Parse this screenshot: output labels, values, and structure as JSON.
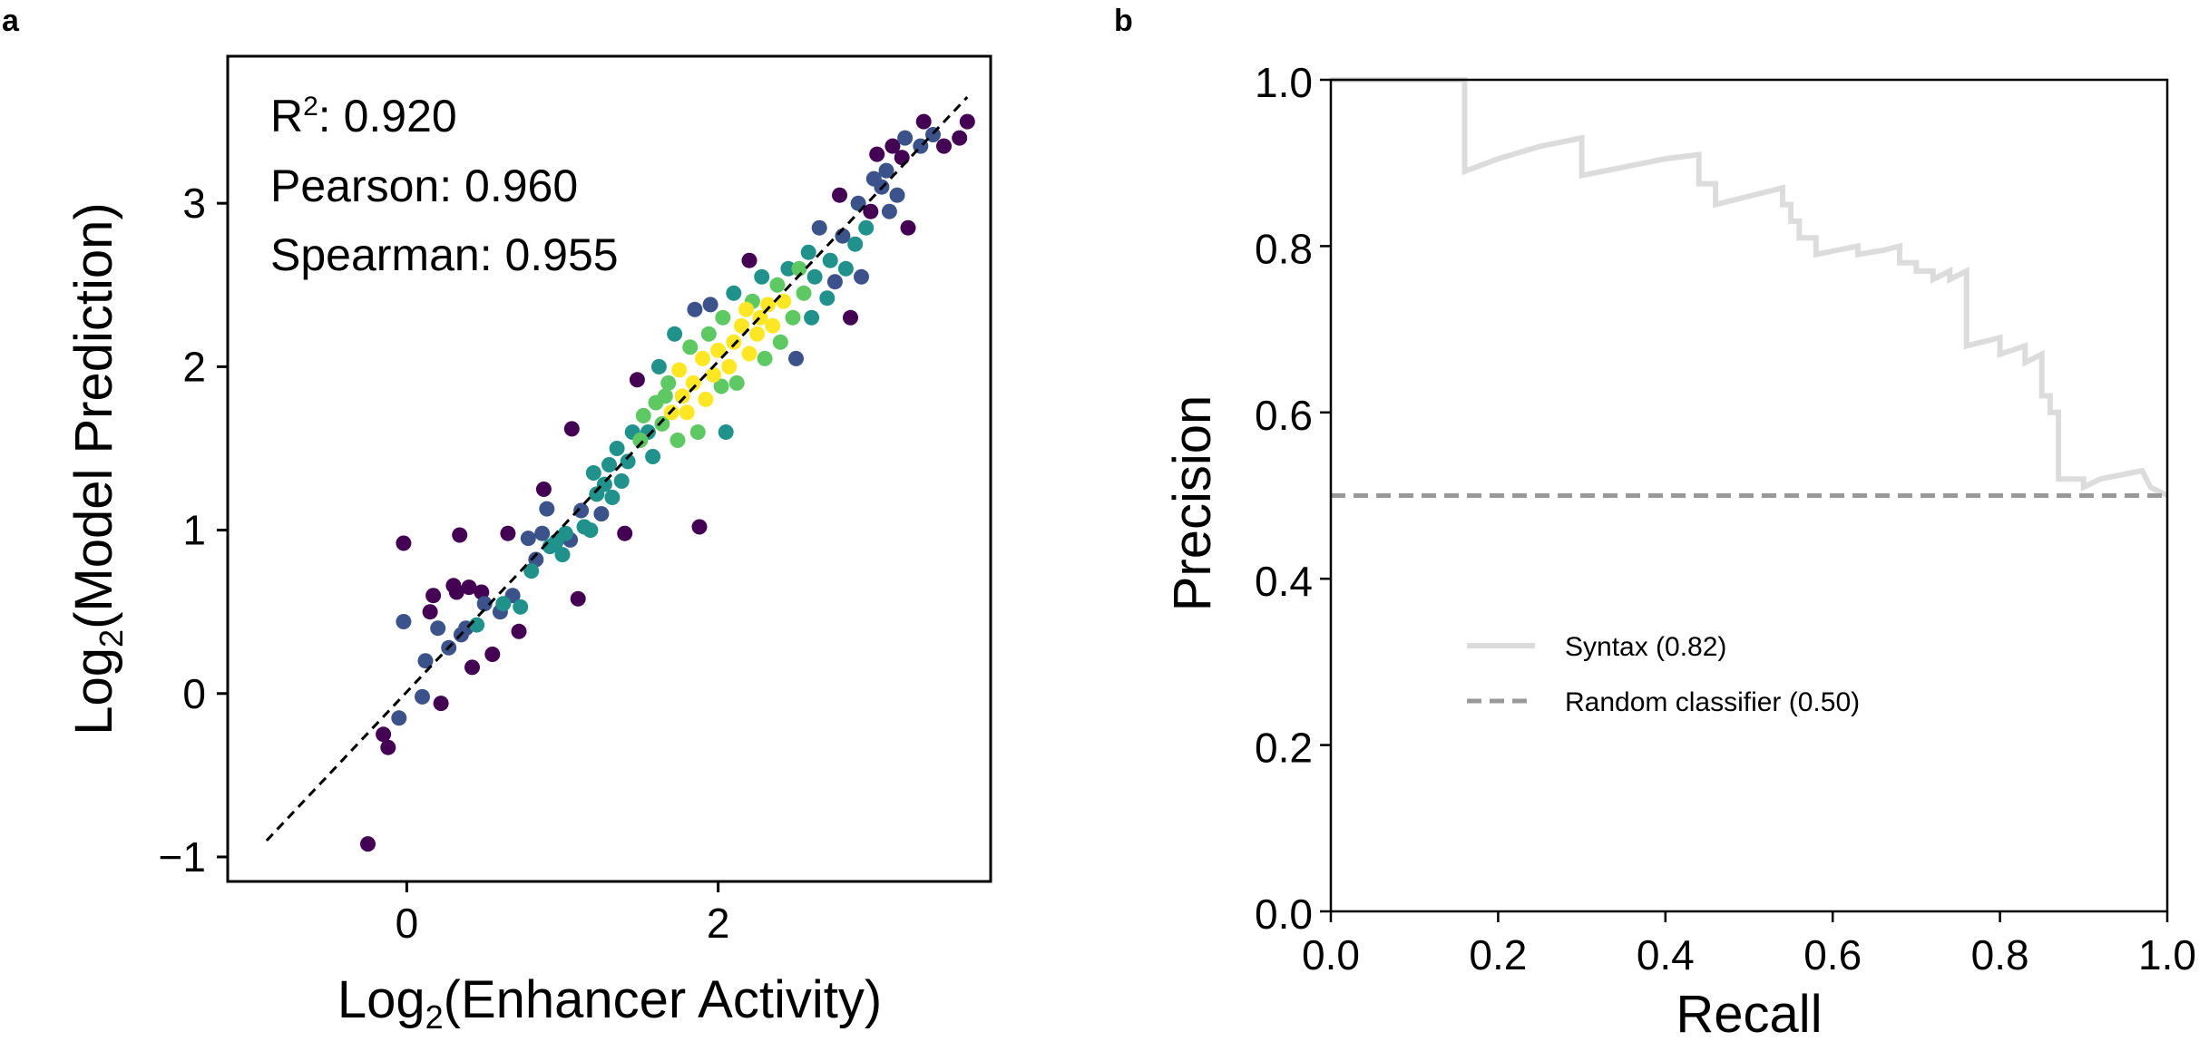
{
  "panels": {
    "a": {
      "letter": "a",
      "stats": {
        "r2_prefix": "R",
        "r2_sup": "2",
        "r2_rest": ": 0.920",
        "pearson": "Pearson: 0.960",
        "spearman": "Spearman: 0.955"
      },
      "xlabel": {
        "prefix": "Log",
        "sub": "2",
        "rest": "(Enhancer Activity)"
      },
      "ylabel": {
        "prefix": "Log",
        "sub": "2",
        "rest": "(Model Prediction)"
      }
    },
    "b": {
      "letter": "b",
      "xlabel": "Recall",
      "ylabel": "Precision",
      "legend": [
        "Syntax (0.82)",
        "Random classifier (0.50)"
      ]
    }
  },
  "chart_data": [
    {
      "type": "scatter",
      "xlim": [
        -1.15,
        3.75
      ],
      "ylim": [
        -1.15,
        3.9
      ],
      "xticks": [
        {
          "v": 0,
          "label": "0"
        },
        {
          "v": 2,
          "label": "2"
        }
      ],
      "yticks": [
        {
          "v": -1,
          "label": "−1"
        },
        {
          "v": 0,
          "label": "0"
        },
        {
          "v": 1,
          "label": "1"
        },
        {
          "v": 2,
          "label": "2"
        },
        {
          "v": 3,
          "label": "3"
        }
      ],
      "colormap": "viridis (point density)",
      "density_colors": [
        "#440154",
        "#3b528b",
        "#21918c",
        "#5ec962",
        "#fde725"
      ],
      "identity_line": {
        "x": [
          -0.9,
          3.6
        ],
        "y": [
          -0.9,
          3.65
        ],
        "color": "#000000",
        "style": "dashed"
      },
      "points": [
        [
          -0.25,
          -0.92,
          0
        ],
        [
          -0.15,
          -0.25,
          0
        ],
        [
          -0.12,
          -0.33,
          0
        ],
        [
          -0.05,
          -0.15,
          1
        ],
        [
          -0.02,
          0.92,
          0
        ],
        [
          -0.02,
          0.44,
          1
        ],
        [
          0.1,
          -0.02,
          1
        ],
        [
          0.12,
          0.2,
          1
        ],
        [
          0.15,
          0.5,
          0
        ],
        [
          0.17,
          0.6,
          0
        ],
        [
          0.2,
          0.4,
          1
        ],
        [
          0.22,
          -0.06,
          0
        ],
        [
          0.27,
          0.28,
          1
        ],
        [
          0.3,
          0.66,
          0
        ],
        [
          0.32,
          0.62,
          0
        ],
        [
          0.34,
          0.97,
          0
        ],
        [
          0.35,
          0.36,
          1
        ],
        [
          0.38,
          0.4,
          1
        ],
        [
          0.4,
          0.65,
          0
        ],
        [
          0.42,
          0.16,
          0
        ],
        [
          0.45,
          0.42,
          2
        ],
        [
          0.48,
          0.62,
          0
        ],
        [
          0.5,
          0.55,
          1
        ],
        [
          0.55,
          0.24,
          0
        ],
        [
          0.6,
          0.5,
          1
        ],
        [
          0.62,
          0.55,
          2
        ],
        [
          0.65,
          0.98,
          0
        ],
        [
          0.68,
          0.6,
          1
        ],
        [
          0.72,
          0.38,
          0
        ],
        [
          0.73,
          0.53,
          2
        ],
        [
          0.78,
          0.95,
          1
        ],
        [
          0.8,
          0.75,
          2
        ],
        [
          0.83,
          0.82,
          1
        ],
        [
          0.87,
          0.98,
          1
        ],
        [
          0.88,
          1.25,
          0
        ],
        [
          0.9,
          1.13,
          1
        ],
        [
          0.92,
          0.9,
          2
        ],
        [
          0.96,
          0.93,
          2
        ],
        [
          1.0,
          0.85,
          2
        ],
        [
          1.02,
          0.98,
          2
        ],
        [
          1.05,
          0.94,
          1
        ],
        [
          1.06,
          1.62,
          0
        ],
        [
          1.1,
          0.58,
          0
        ],
        [
          1.12,
          1.12,
          1
        ],
        [
          1.14,
          1.02,
          2
        ],
        [
          1.18,
          1.0,
          2
        ],
        [
          1.2,
          1.35,
          2
        ],
        [
          1.22,
          1.22,
          2
        ],
        [
          1.25,
          1.1,
          1
        ],
        [
          1.27,
          1.28,
          2
        ],
        [
          1.3,
          1.4,
          2
        ],
        [
          1.32,
          1.2,
          2
        ],
        [
          1.35,
          1.5,
          2
        ],
        [
          1.38,
          1.3,
          2
        ],
        [
          1.4,
          0.98,
          0
        ],
        [
          1.42,
          1.42,
          2
        ],
        [
          1.45,
          1.6,
          2
        ],
        [
          1.48,
          1.92,
          0
        ],
        [
          1.5,
          1.55,
          3
        ],
        [
          1.52,
          1.7,
          3
        ],
        [
          1.55,
          1.6,
          2
        ],
        [
          1.58,
          1.45,
          2
        ],
        [
          1.6,
          1.78,
          3
        ],
        [
          1.62,
          2.0,
          2
        ],
        [
          1.64,
          1.65,
          3
        ],
        [
          1.66,
          1.82,
          3
        ],
        [
          1.68,
          1.9,
          3
        ],
        [
          1.7,
          1.72,
          4
        ],
        [
          1.72,
          2.2,
          2
        ],
        [
          1.74,
          1.55,
          3
        ],
        [
          1.75,
          1.98,
          4
        ],
        [
          1.77,
          1.82,
          4
        ],
        [
          1.8,
          1.72,
          4
        ],
        [
          1.82,
          2.12,
          3
        ],
        [
          1.84,
          1.9,
          4
        ],
        [
          1.85,
          2.35,
          1
        ],
        [
          1.87,
          1.6,
          3
        ],
        [
          1.88,
          1.02,
          0
        ],
        [
          1.9,
          2.05,
          4
        ],
        [
          1.92,
          1.8,
          4
        ],
        [
          1.94,
          2.2,
          3
        ],
        [
          1.95,
          2.38,
          1
        ],
        [
          1.97,
          1.95,
          4
        ],
        [
          2.0,
          2.1,
          4
        ],
        [
          2.02,
          1.88,
          3
        ],
        [
          2.03,
          2.3,
          3
        ],
        [
          2.05,
          1.6,
          2
        ],
        [
          2.07,
          2.0,
          4
        ],
        [
          2.1,
          2.15,
          4
        ],
        [
          2.1,
          2.45,
          2
        ],
        [
          2.12,
          1.9,
          3
        ],
        [
          2.15,
          2.25,
          4
        ],
        [
          2.18,
          2.35,
          4
        ],
        [
          2.2,
          2.08,
          4
        ],
        [
          2.2,
          2.65,
          0
        ],
        [
          2.22,
          2.4,
          3
        ],
        [
          2.25,
          2.2,
          4
        ],
        [
          2.27,
          2.3,
          4
        ],
        [
          2.28,
          2.55,
          2
        ],
        [
          2.3,
          2.05,
          3
        ],
        [
          2.32,
          2.38,
          4
        ],
        [
          2.35,
          2.25,
          4
        ],
        [
          2.38,
          2.5,
          3
        ],
        [
          2.4,
          2.15,
          3
        ],
        [
          2.42,
          2.4,
          4
        ],
        [
          2.45,
          2.6,
          2
        ],
        [
          2.48,
          2.3,
          3
        ],
        [
          2.5,
          2.05,
          1
        ],
        [
          2.52,
          2.6,
          3
        ],
        [
          2.55,
          2.45,
          3
        ],
        [
          2.58,
          2.7,
          2
        ],
        [
          2.6,
          2.3,
          2
        ],
        [
          2.62,
          2.55,
          2
        ],
        [
          2.65,
          2.85,
          1
        ],
        [
          2.7,
          2.42,
          2
        ],
        [
          2.72,
          2.65,
          2
        ],
        [
          2.75,
          2.52,
          1
        ],
        [
          2.78,
          3.05,
          0
        ],
        [
          2.8,
          2.8,
          1
        ],
        [
          2.82,
          2.6,
          2
        ],
        [
          2.85,
          2.3,
          0
        ],
        [
          2.88,
          2.75,
          2
        ],
        [
          2.9,
          3.0,
          1
        ],
        [
          2.92,
          2.55,
          1
        ],
        [
          2.95,
          2.85,
          2
        ],
        [
          2.98,
          2.95,
          0
        ],
        [
          3.0,
          3.15,
          1
        ],
        [
          3.02,
          3.3,
          0
        ],
        [
          3.05,
          3.1,
          1
        ],
        [
          3.08,
          3.2,
          1
        ],
        [
          3.1,
          2.95,
          1
        ],
        [
          3.12,
          3.35,
          0
        ],
        [
          3.15,
          3.05,
          1
        ],
        [
          3.18,
          3.28,
          0
        ],
        [
          3.2,
          3.4,
          1
        ],
        [
          3.22,
          2.85,
          0
        ],
        [
          3.3,
          3.35,
          1
        ],
        [
          3.32,
          3.5,
          0
        ],
        [
          3.38,
          3.42,
          1
        ],
        [
          3.45,
          3.35,
          0
        ],
        [
          3.55,
          3.4,
          0
        ],
        [
          3.6,
          3.5,
          0
        ]
      ]
    },
    {
      "type": "line",
      "xlim": [
        0,
        1
      ],
      "ylim": [
        0,
        1
      ],
      "xticks": [
        {
          "v": 0,
          "label": "0.0"
        },
        {
          "v": 0.2,
          "label": "0.2"
        },
        {
          "v": 0.4,
          "label": "0.4"
        },
        {
          "v": 0.6,
          "label": "0.6"
        },
        {
          "v": 0.8,
          "label": "0.8"
        },
        {
          "v": 1,
          "label": "1.0"
        }
      ],
      "yticks": [
        {
          "v": 0,
          "label": "0.0"
        },
        {
          "v": 0.2,
          "label": "0.2"
        },
        {
          "v": 0.4,
          "label": "0.4"
        },
        {
          "v": 0.6,
          "label": "0.6"
        },
        {
          "v": 0.8,
          "label": "0.8"
        },
        {
          "v": 1,
          "label": "1.0"
        }
      ],
      "legend_position": "center-left",
      "series": [
        {
          "name": "Syntax (0.82)",
          "color": "#dcdcdc",
          "style": "solid",
          "points": [
            [
              0.0,
              1.0
            ],
            [
              0.16,
              1.0
            ],
            [
              0.16,
              0.89
            ],
            [
              0.2,
              0.905
            ],
            [
              0.25,
              0.92
            ],
            [
              0.3,
              0.93
            ],
            [
              0.3,
              0.885
            ],
            [
              0.35,
              0.895
            ],
            [
              0.4,
              0.905
            ],
            [
              0.44,
              0.91
            ],
            [
              0.44,
              0.875
            ],
            [
              0.46,
              0.875
            ],
            [
              0.46,
              0.85
            ],
            [
              0.5,
              0.86
            ],
            [
              0.54,
              0.87
            ],
            [
              0.54,
              0.85
            ],
            [
              0.55,
              0.85
            ],
            [
              0.55,
              0.83
            ],
            [
              0.56,
              0.83
            ],
            [
              0.56,
              0.81
            ],
            [
              0.58,
              0.81
            ],
            [
              0.58,
              0.79
            ],
            [
              0.63,
              0.8
            ],
            [
              0.63,
              0.79
            ],
            [
              0.66,
              0.795
            ],
            [
              0.68,
              0.8
            ],
            [
              0.68,
              0.78
            ],
            [
              0.7,
              0.78
            ],
            [
              0.7,
              0.77
            ],
            [
              0.72,
              0.77
            ],
            [
              0.72,
              0.76
            ],
            [
              0.74,
              0.77
            ],
            [
              0.74,
              0.76
            ],
            [
              0.76,
              0.77
            ],
            [
              0.76,
              0.68
            ],
            [
              0.8,
              0.69
            ],
            [
              0.8,
              0.67
            ],
            [
              0.83,
              0.68
            ],
            [
              0.83,
              0.66
            ],
            [
              0.85,
              0.67
            ],
            [
              0.85,
              0.62
            ],
            [
              0.86,
              0.62
            ],
            [
              0.86,
              0.6
            ],
            [
              0.87,
              0.6
            ],
            [
              0.87,
              0.52
            ],
            [
              0.9,
              0.52
            ],
            [
              0.9,
              0.51
            ],
            [
              0.92,
              0.52
            ],
            [
              0.97,
              0.53
            ],
            [
              0.98,
              0.51
            ],
            [
              1.0,
              0.5
            ]
          ]
        },
        {
          "name": "Random classifier (0.50)",
          "color": "#999999",
          "style": "dashed",
          "points": [
            [
              0.0,
              0.5
            ],
            [
              1.0,
              0.5
            ]
          ]
        }
      ]
    }
  ]
}
